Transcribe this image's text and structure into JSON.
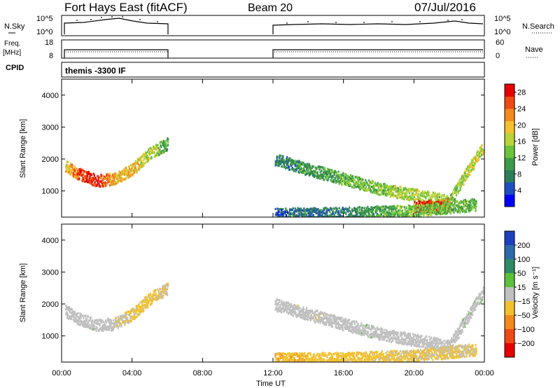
{
  "header": {
    "station": "Fort Hays East (fitACF)",
    "beam": "Beam 20",
    "date": "07/Jul/2016"
  },
  "mini_panels": {
    "nsky": {
      "left_label": "N.Sky",
      "left_ticks": [
        "10^5",
        "10^0"
      ],
      "right_label": "N.Search",
      "right_ticks": [
        "10^5",
        "10^0"
      ]
    },
    "freq": {
      "left_label_1": "Freq.",
      "left_label_2": "[MHz]",
      "left_ticks": [
        "18",
        "8"
      ],
      "right_label": "Nave",
      "right_ticks": [
        "60",
        "0"
      ]
    },
    "cpid": {
      "left_label": "CPID",
      "mode_text": "themis -3300 IF"
    }
  },
  "colorbars": {
    "power": {
      "label": "Power [dB]",
      "ticks": [
        "28",
        "24",
        "20",
        "16",
        "12",
        "8",
        "4"
      ],
      "colors": [
        "#0000ff",
        "#1f4fbf",
        "#2e7d5a",
        "#3c9a4a",
        "#6cc43c",
        "#b9d23a",
        "#f2c12e",
        "#f28a1e",
        "#ee4a16",
        "#e60000"
      ]
    },
    "velocity": {
      "label": "Velocity [m s⁻¹]",
      "ticks": [
        "200",
        "100",
        "50",
        "15",
        "−15",
        "−50",
        "−100",
        "−200"
      ],
      "colors": [
        "#1f3fbf",
        "#2f6aa8",
        "#2f8a66",
        "#5cc03c",
        "#c0c0c0",
        "#f2c12e",
        "#f28a1e",
        "#ee4a16",
        "#e60000"
      ]
    }
  },
  "x_axis": {
    "label": "Time UT",
    "ticks": [
      "00:00",
      "04:00",
      "08:00",
      "12:00",
      "16:00",
      "20:00",
      "00:00"
    ]
  },
  "chart_data": [
    {
      "type": "heatmap",
      "title": "Power",
      "xlabel": "Time UT",
      "ylabel": "Slant Range [km]",
      "xlim": [
        0,
        24
      ],
      "ylim": [
        180,
        4500
      ],
      "yticks": [
        "1000",
        "2000",
        "3000",
        "4000"
      ],
      "colorbar_label": "Power [dB]",
      "colorbar_range": [
        0,
        30
      ],
      "segments": [
        {
          "t": [
            0.2,
            1.0,
            2.0,
            3.0,
            4.0,
            5.0,
            6.0
          ],
          "range": [
            1800,
            1550,
            1350,
            1400,
            1700,
            2200,
            2500
          ],
          "power": [
            18,
            26,
            28,
            20,
            20,
            16,
            12
          ]
        },
        {
          "t": [
            12.1,
            14.0,
            16.0,
            18.0,
            20.0,
            22.0,
            23.9
          ],
          "range": [
            2000,
            1700,
            1400,
            1100,
            900,
            700,
            2400
          ],
          "power": [
            8,
            10,
            12,
            14,
            16,
            14,
            18
          ]
        },
        {
          "t": [
            20.0,
            20.5,
            21.0,
            21.5,
            22.0
          ],
          "range": [
            560,
            540,
            530,
            560,
            600
          ],
          "power": [
            26,
            28,
            30,
            24,
            22
          ]
        },
        {
          "t": [
            12.1,
            16.0,
            20.0,
            23.5
          ],
          "range": [
            300,
            320,
            400,
            600
          ],
          "power": [
            6,
            8,
            14,
            12
          ]
        }
      ]
    },
    {
      "type": "heatmap",
      "title": "Velocity",
      "xlabel": "Time UT",
      "ylabel": "Slant Range [km]",
      "xlim": [
        0,
        24
      ],
      "ylim": [
        180,
        4500
      ],
      "yticks": [
        "1000",
        "2000",
        "3000",
        "4000"
      ],
      "colorbar_label": "Velocity [m s⁻¹]",
      "colorbar_range": [
        -200,
        200
      ],
      "segments": [
        {
          "t": [
            0.2,
            1.0,
            2.0,
            3.0,
            4.0,
            5.0,
            6.0
          ],
          "range": [
            1800,
            1550,
            1350,
            1400,
            1700,
            2200,
            2500
          ],
          "velocity": [
            0,
            0,
            5,
            -5,
            -30,
            -40,
            -20
          ]
        },
        {
          "t": [
            12.1,
            14.0,
            16.0,
            18.0,
            20.0,
            22.0,
            23.9
          ],
          "range": [
            2000,
            1700,
            1400,
            1100,
            900,
            700,
            2400
          ],
          "velocity": [
            0,
            -5,
            0,
            5,
            0,
            0,
            10
          ]
        },
        {
          "t": [
            12.1,
            16.0,
            20.0,
            23.5
          ],
          "range": [
            300,
            320,
            400,
            600
          ],
          "velocity": [
            -60,
            -40,
            -30,
            -20
          ]
        }
      ]
    }
  ]
}
